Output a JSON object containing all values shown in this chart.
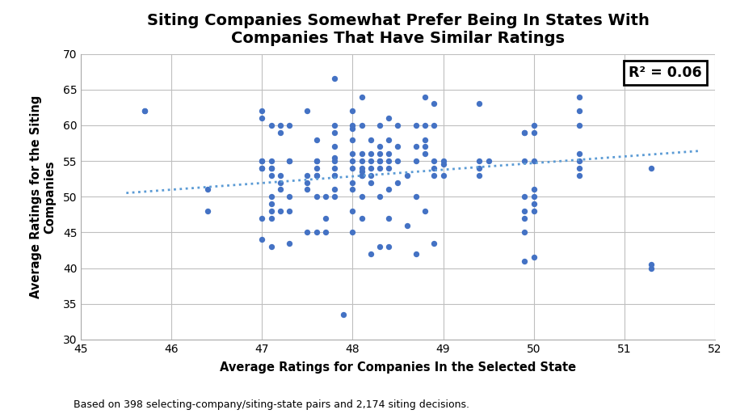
{
  "title": "Siting Companies Somewhat Prefer Being In States With\nCompanies That Have Similar Ratings",
  "xlabel": "Average Ratings for Companies In the Selected State",
  "ylabel": "Average Ratings for the Siting\nCompanies",
  "footnote": "Based on 398 selecting-company/siting-state pairs and 2,174 siting decisions.",
  "r2_label": "R² = 0.06",
  "dot_color": "#4472C4",
  "trendline_color": "#5B9BD5",
  "xlim": [
    45,
    52
  ],
  "ylim": [
    30,
    70
  ],
  "xticks": [
    45,
    46,
    47,
    48,
    49,
    50,
    51,
    52
  ],
  "yticks": [
    30,
    35,
    40,
    45,
    50,
    55,
    60,
    65,
    70
  ],
  "scatter_x": [
    45.7,
    45.7,
    46.4,
    46.4,
    47.0,
    47.0,
    47.0,
    47.0,
    47.0,
    47.0,
    47.0,
    47.0,
    47.1,
    47.1,
    47.1,
    47.1,
    47.1,
    47.1,
    47.1,
    47.1,
    47.1,
    47.1,
    47.2,
    47.2,
    47.2,
    47.2,
    47.2,
    47.2,
    47.3,
    47.3,
    47.3,
    47.3,
    47.3,
    47.3,
    47.5,
    47.5,
    47.5,
    47.5,
    47.5,
    47.6,
    47.6,
    47.6,
    47.6,
    47.6,
    47.6,
    47.6,
    47.6,
    47.7,
    47.7,
    47.7,
    47.8,
    47.8,
    47.8,
    47.8,
    47.8,
    47.8,
    47.8,
    47.8,
    47.8,
    47.8,
    47.8,
    47.9,
    48.0,
    48.0,
    48.0,
    48.0,
    48.0,
    48.0,
    48.0,
    48.0,
    48.0,
    48.0,
    48.0,
    48.1,
    48.1,
    48.1,
    48.1,
    48.1,
    48.1,
    48.1,
    48.1,
    48.1,
    48.1,
    48.2,
    48.2,
    48.2,
    48.2,
    48.2,
    48.2,
    48.2,
    48.3,
    48.3,
    48.3,
    48.3,
    48.3,
    48.3,
    48.3,
    48.3,
    48.4,
    48.4,
    48.4,
    48.4,
    48.4,
    48.4,
    48.4,
    48.4,
    48.5,
    48.5,
    48.5,
    48.5,
    48.6,
    48.6,
    48.7,
    48.7,
    48.7,
    48.7,
    48.7,
    48.8,
    48.8,
    48.8,
    48.8,
    48.8,
    48.8,
    48.9,
    48.9,
    48.9,
    48.9,
    48.9,
    48.9,
    49.0,
    49.0,
    49.0,
    49.4,
    49.4,
    49.4,
    49.4,
    49.5,
    49.9,
    49.9,
    49.9,
    49.9,
    49.9,
    49.9,
    49.9,
    49.9,
    50.0,
    50.0,
    50.0,
    50.0,
    50.0,
    50.0,
    50.0,
    50.0,
    50.5,
    50.5,
    50.5,
    50.5,
    50.5,
    50.5,
    50.5,
    51.3,
    51.3,
    51.3
  ],
  "scatter_y": [
    62.0,
    62.0,
    51.0,
    48.0,
    61.0,
    62.0,
    55.0,
    55.0,
    54.0,
    54.0,
    47.0,
    44.0,
    60.0,
    55.0,
    54.0,
    54.0,
    53.0,
    50.0,
    49.0,
    48.0,
    47.0,
    43.0,
    60.0,
    59.0,
    53.0,
    52.0,
    51.0,
    48.0,
    60.0,
    55.0,
    55.0,
    50.0,
    48.0,
    43.5,
    62.0,
    53.0,
    52.0,
    51.0,
    45.0,
    58.0,
    55.0,
    55.0,
    54.0,
    53.0,
    53.0,
    50.0,
    45.0,
    50.0,
    47.0,
    45.0,
    66.5,
    60.0,
    59.0,
    57.0,
    55.5,
    55.0,
    54.0,
    53.0,
    53.0,
    51.0,
    50.0,
    33.5,
    62.0,
    60.0,
    59.5,
    58.0,
    56.0,
    55.0,
    54.0,
    52.0,
    51.0,
    48.0,
    45.0,
    64.0,
    60.0,
    56.0,
    55.0,
    54.0,
    53.5,
    53.0,
    53.0,
    50.0,
    47.0,
    58.0,
    56.0,
    55.0,
    54.0,
    53.0,
    52.0,
    42.0,
    60.0,
    57.0,
    56.0,
    55.0,
    55.0,
    54.0,
    50.0,
    43.0,
    61.0,
    58.0,
    56.0,
    55.0,
    54.0,
    51.0,
    47.0,
    43.0,
    60.0,
    57.0,
    55.0,
    52.0,
    53.0,
    46.0,
    60.0,
    57.0,
    55.0,
    50.0,
    42.0,
    64.0,
    60.0,
    58.0,
    57.0,
    56.0,
    48.0,
    63.0,
    60.0,
    55.0,
    54.0,
    53.0,
    43.5,
    55.0,
    54.5,
    53.0,
    63.0,
    55.0,
    54.0,
    53.0,
    55.0,
    59.0,
    59.0,
    55.0,
    50.0,
    48.0,
    47.0,
    45.0,
    41.0,
    60.0,
    59.0,
    55.0,
    51.0,
    50.0,
    49.0,
    48.0,
    41.5,
    64.0,
    62.0,
    60.0,
    56.0,
    55.0,
    54.0,
    53.0,
    54.0,
    40.5,
    40.0
  ],
  "trend_x_start": 45.5,
  "trend_x_end": 51.85,
  "trend_slope": 0.93,
  "trend_intercept": 8.2,
  "background_color": "#ffffff",
  "grid_color": "#bfbfbf",
  "title_fontsize": 14,
  "label_fontsize": 10.5,
  "tick_fontsize": 10,
  "footnote_fontsize": 9
}
